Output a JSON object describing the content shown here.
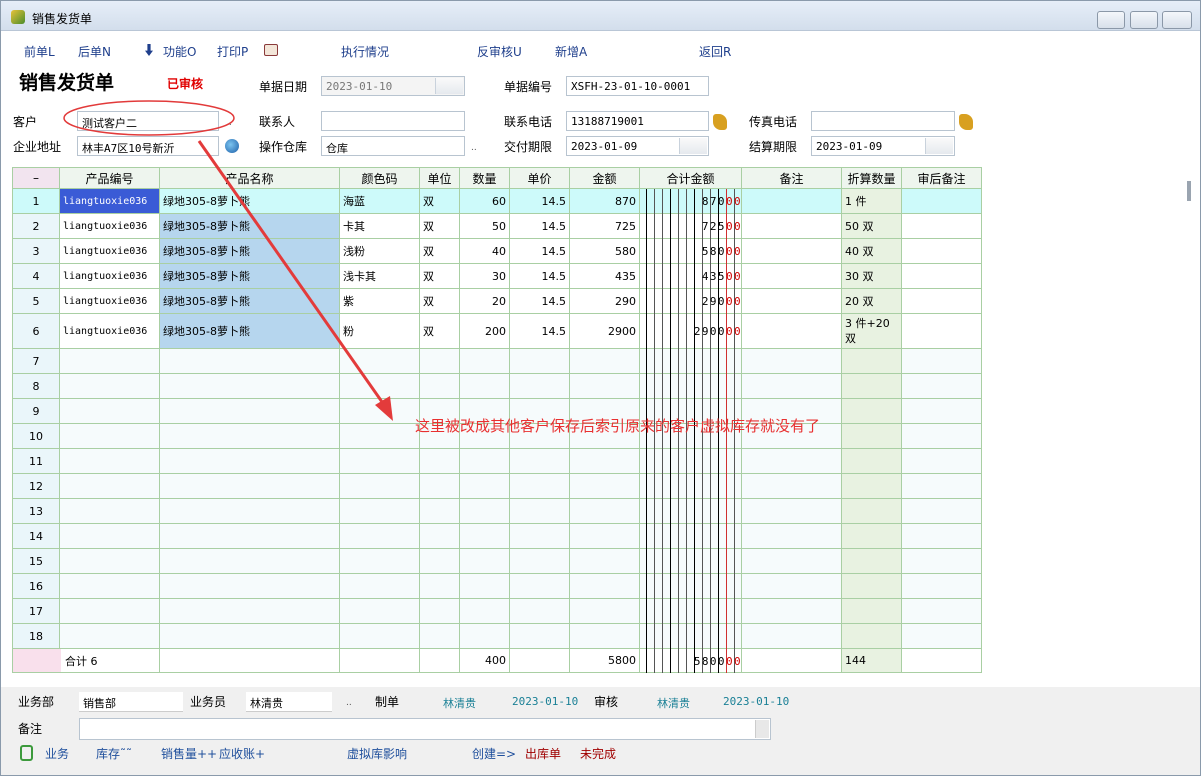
{
  "window": {
    "title": "销售发货单"
  },
  "toolbar": [
    "前单L",
    "后单N",
    "功能O",
    "打印P",
    "执行情况",
    "反审核U",
    "新增A",
    "返回R"
  ],
  "header": {
    "title": "销售发货单",
    "status": "已审核",
    "fields": [
      {
        "label": "单据日期",
        "value": "2023-01-10",
        "type": "date",
        "disabled": true
      },
      {
        "label": "单据编号",
        "value": "XSFH-23-01-10-0001"
      },
      {
        "label": "客户",
        "value": "测试客户二"
      },
      {
        "label": "联系人"
      },
      {
        "label": "联系电话",
        "value": "13188719001"
      },
      {
        "label": "传真电话"
      },
      {
        "label": "企业地址",
        "value": "林丰A7区10号新沂"
      },
      {
        "label": "操作仓库",
        "value": "仓库"
      },
      {
        "label": "交付期限",
        "value": "2023-01-09",
        "type": "date"
      },
      {
        "label": "结算期限",
        "value": "2023-01-09",
        "type": "date"
      }
    ]
  },
  "table": {
    "columns": [
      "–",
      "产品编号",
      "产品名称",
      "颜色码",
      "单位",
      "数量",
      "单价",
      "金额",
      "合计金额",
      "备注",
      "折算数量",
      "审后备注"
    ],
    "rows": [
      {
        "no": 1,
        "code": "liangtuoxie036",
        "name": "绿地305-8萝卜熊",
        "color": "海蓝",
        "unit": "双",
        "qty": 60,
        "price": 14.5,
        "amount": 870,
        "digits": "870",
        "digits_fen": "00",
        "converted": "1 件"
      },
      {
        "no": 2,
        "code": "liangtuoxie036",
        "name": "绿地305-8萝卜熊",
        "color": "卡其",
        "unit": "双",
        "qty": 50,
        "price": 14.5,
        "amount": 725,
        "digits": "725",
        "digits_fen": "00",
        "converted": "50 双"
      },
      {
        "no": 3,
        "code": "liangtuoxie036",
        "name": "绿地305-8萝卜熊",
        "color": "浅粉",
        "unit": "双",
        "qty": 40,
        "price": 14.5,
        "amount": 580,
        "digits": "580",
        "digits_fen": "00",
        "converted": "40 双"
      },
      {
        "no": 4,
        "code": "liangtuoxie036",
        "name": "绿地305-8萝卜熊",
        "color": "浅卡其",
        "unit": "双",
        "qty": 30,
        "price": 14.5,
        "amount": 435,
        "digits": "435",
        "digits_fen": "00",
        "converted": "30 双"
      },
      {
        "no": 5,
        "code": "liangtuoxie036",
        "name": "绿地305-8萝卜熊",
        "color": "紫",
        "unit": "双",
        "qty": 20,
        "price": 14.5,
        "amount": 290,
        "digits": "290",
        "digits_fen": "00",
        "converted": "20 双"
      },
      {
        "no": 6,
        "code": "liangtuoxie036",
        "name": "绿地305-8萝卜熊",
        "color": "粉",
        "unit": "双",
        "qty": 200,
        "price": 14.5,
        "amount": 2900,
        "digits": "2900",
        "digits_fen": "00",
        "converted": "3 件+20 双"
      },
      {
        "no": 7
      },
      {
        "no": 8
      },
      {
        "no": 9
      },
      {
        "no": 10
      },
      {
        "no": 11
      },
      {
        "no": 12
      },
      {
        "no": 13
      },
      {
        "no": 14
      },
      {
        "no": 15
      },
      {
        "no": 16
      },
      {
        "no": 17
      },
      {
        "no": 18
      }
    ],
    "total": {
      "label": "合计 6",
      "qty": 400,
      "amount": 5800,
      "digits": "5800",
      "digits_fen": "00",
      "converted": 144
    }
  },
  "annotation": "这里被改成其他客户保存后索引原来的客户虚拟库存就没有了",
  "footer": {
    "fields": [
      {
        "label": "业务部",
        "value": "销售部"
      },
      {
        "label": "业务员",
        "value": "林清贵"
      }
    ],
    "maker": {
      "label": "制单",
      "name": "林清贵",
      "date": "2023-01-10"
    },
    "auditor": {
      "label": "审核",
      "name": "林清贵",
      "date": "2023-01-10"
    },
    "remark_label": "备注",
    "links": [
      "业务",
      "库存˜˜",
      "销售量++",
      "应收账+",
      "虚拟库影响",
      "创建=>",
      "出库单",
      "未完成"
    ]
  }
}
